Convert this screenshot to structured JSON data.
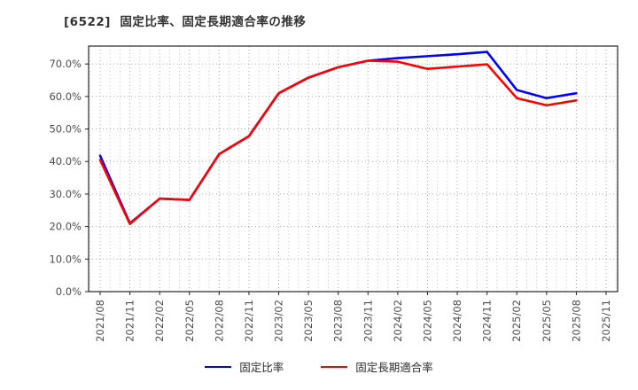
{
  "window": {
    "title": "[6522]  固定比率、固定長期適合率の推移"
  },
  "chart_data": {
    "type": "line",
    "title": "[6522]  固定比率、固定長期適合率の推移",
    "categories": [
      "2021/08",
      "2021/11",
      "2022/02",
      "2022/05",
      "2022/08",
      "2022/11",
      "2023/02",
      "2023/05",
      "2023/08",
      "2023/11",
      "2024/02",
      "2024/05",
      "2024/08",
      "2024/11",
      "2025/02",
      "2025/05",
      "2025/08",
      "2025/11"
    ],
    "series": [
      {
        "name": "固定比率",
        "color": "#0000ff",
        "values": [
          41.8,
          21.0,
          28.6,
          28.2,
          42.3,
          47.8,
          61.0,
          65.8,
          69.0,
          71.0,
          71.8,
          72.4,
          73.0,
          73.7,
          62.0,
          59.5,
          61.0
        ]
      },
      {
        "name": "固定長期適合率",
        "color": "#ff0000",
        "values": [
          40.5,
          20.8,
          28.6,
          28.2,
          42.3,
          47.8,
          61.0,
          65.8,
          69.0,
          71.0,
          70.7,
          68.5,
          69.2,
          69.9,
          59.5,
          57.3,
          58.8
        ]
      }
    ],
    "ylim": [
      0,
      75.5
    ],
    "y_tick_values": [
      0,
      10,
      20,
      30,
      40,
      50,
      60,
      70
    ],
    "y_tick_labels": [
      "0.0%",
      "10.0%",
      "20.0%",
      "30.0%",
      "40.0%",
      "50.0%",
      "60.0%",
      "70.0%"
    ],
    "xlabel": "",
    "ylabel": "",
    "grid": true,
    "grid_style": "dotted",
    "minor_x_gridlines_per_interval": 2,
    "legend_position": "bottom-center",
    "note": "last category 2025/11 has no data points"
  },
  "colors": {
    "series_blue": "#0000ff",
    "series_red": "#ff0000",
    "grid_major": "#a6a6a6",
    "grid_minor": "#c3c3c3",
    "axis_border": "#262626",
    "tick_label": "#4d4d4d",
    "title_text": "#333333"
  }
}
